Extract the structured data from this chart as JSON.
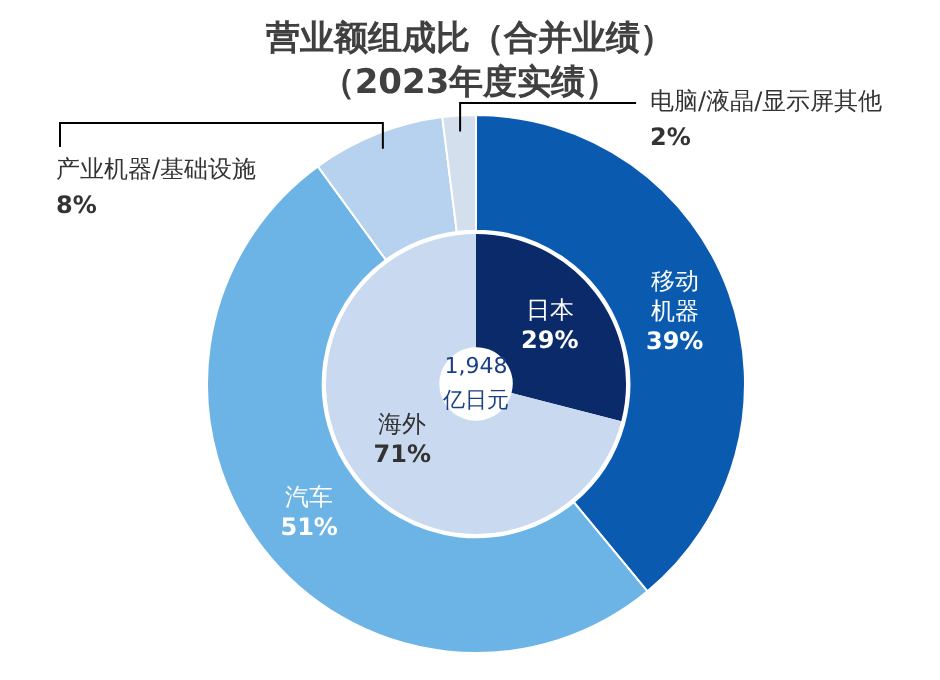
{
  "chart_data": [
    {
      "type": "donut",
      "title": "营业额组成比（合并业绩）",
      "subtitle": "（2023年度实绩）",
      "categories": [
        "移动机器",
        "汽车",
        "产业机器/基础设施",
        "电脑/液晶/显示屏其他"
      ],
      "values": [
        39,
        51,
        8,
        2
      ],
      "value_labels": [
        "39%",
        "51%",
        "8%",
        "2%"
      ],
      "colors": [
        "#0a5bb0",
        "#6cb4e6",
        "#b7d2ee",
        "#d3dfec"
      ],
      "legend": false
    },
    {
      "type": "donut",
      "categories": [
        "日本",
        "海外"
      ],
      "values": [
        29,
        71
      ],
      "value_labels": [
        "29%",
        "71%"
      ],
      "colors": [
        "#0a2a6a",
        "#c9daf0"
      ],
      "legend": false,
      "annotations": [
        "1,948",
        "亿日元"
      ]
    }
  ]
}
